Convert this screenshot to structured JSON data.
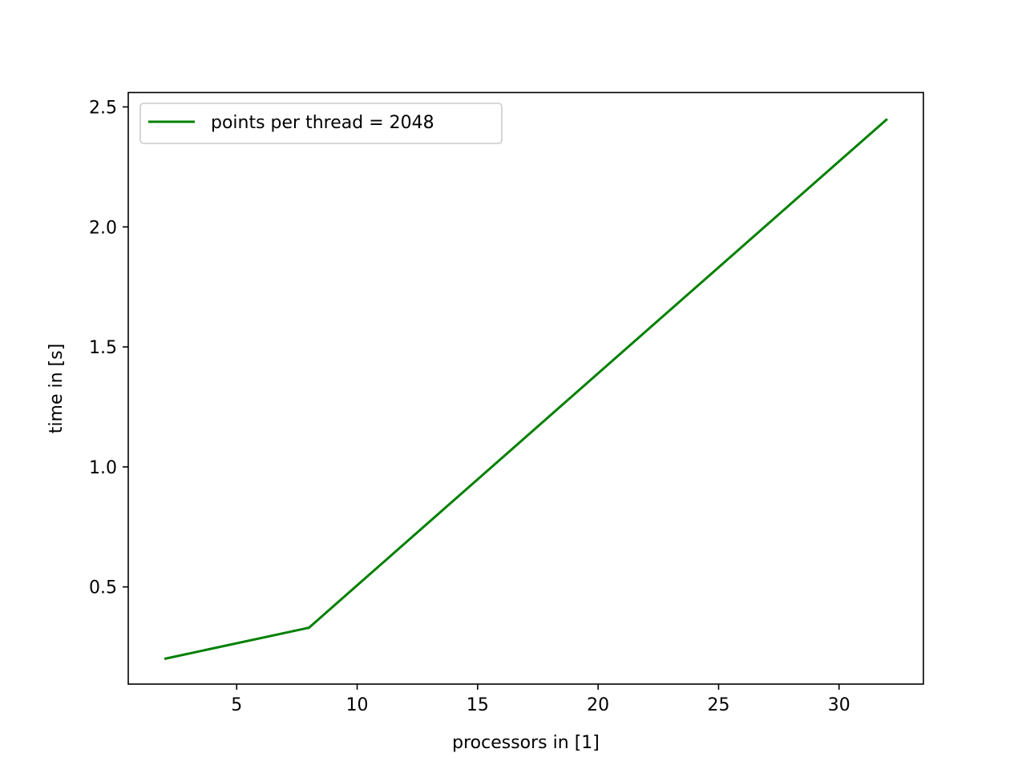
{
  "chart_data": {
    "type": "line",
    "title": "",
    "xlabel": "processors in [1]",
    "ylabel": "time in [s]",
    "xlim": [
      0.5,
      33.5
    ],
    "ylim": [
      0.095,
      2.56
    ],
    "xticks": [
      5,
      10,
      15,
      20,
      25,
      30
    ],
    "yticks": [
      0.5,
      1.0,
      1.5,
      2.0,
      2.5
    ],
    "xtick_labels": [
      "5",
      "10",
      "15",
      "20",
      "25",
      "30"
    ],
    "ytick_labels": [
      "0.5",
      "1.0",
      "1.5",
      "2.0",
      "2.5"
    ],
    "grid": false,
    "legend_position": "top-left",
    "series": [
      {
        "name": "points per thread = 2048",
        "color": "#008000",
        "x": [
          2,
          8,
          32
        ],
        "y": [
          0.2,
          0.33,
          2.45
        ]
      }
    ]
  }
}
